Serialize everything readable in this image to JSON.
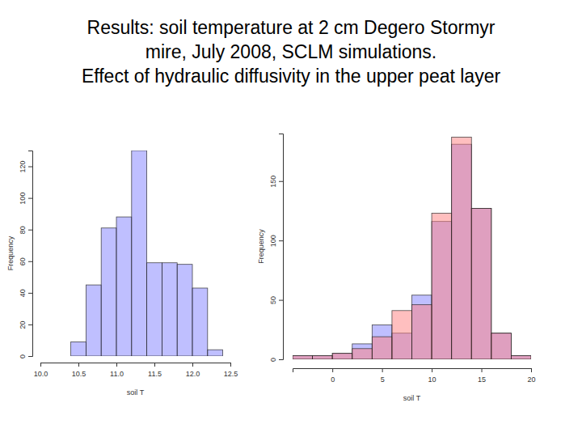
{
  "title": [
    "Results: soil temperature at 2 cm Degero Stormyr",
    "mire, July 2008, SCLM simulations.",
    "Effect of hydraulic diffusivity in the upper peat layer"
  ],
  "chart_data": [
    {
      "type": "histogram",
      "bins": [
        10.4,
        10.6,
        10.8,
        11.0,
        11.2,
        11.4,
        11.6,
        11.8,
        12.0,
        12.2,
        12.4
      ],
      "values": [
        9,
        45,
        81,
        88,
        130,
        59,
        59,
        58,
        43,
        4
      ],
      "color": "#8080ff",
      "xlim": [
        10,
        12.5
      ],
      "xticks": [
        {
          "value": 10,
          "label": "10.0"
        },
        10.5,
        {
          "value": 11,
          "label": "11.0"
        },
        11.5,
        {
          "value": 12,
          "label": "12.0"
        },
        12.5
      ],
      "ylim": [
        0,
        130
      ],
      "yticks": [
        0,
        20,
        40,
        60,
        80,
        100,
        120
      ],
      "x_label": "soil T",
      "y_label": "Frequency"
    },
    {
      "type": "histogram",
      "bins": [
        -4,
        -2,
        0,
        2,
        4,
        6,
        8,
        10,
        12,
        14,
        16,
        18,
        20
      ],
      "series": [
        {
          "color": "#8080ff",
          "values": [
            3,
            3,
            5,
            13,
            29,
            22,
            54,
            116,
            181,
            127,
            22,
            3
          ]
        },
        {
          "color": "#ff8080",
          "values": [
            3,
            3,
            5,
            9,
            19,
            41,
            46,
            123,
            187,
            127,
            22,
            3
          ]
        }
      ],
      "xlim": [
        -4,
        20
      ],
      "xticks": [
        0,
        5,
        10,
        15,
        20
      ],
      "ylim": [
        0,
        190
      ],
      "yticks": [
        0,
        50,
        100,
        150
      ],
      "x_label": "soil T",
      "y_label": "Frequency"
    }
  ]
}
